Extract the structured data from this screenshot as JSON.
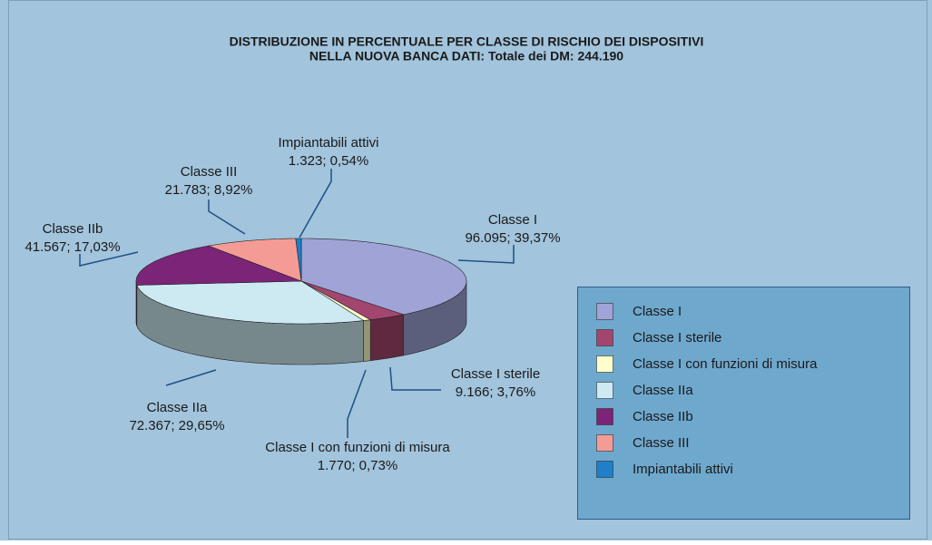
{
  "chart_data": {
    "type": "pie3d",
    "title": [
      "DISTRIBUZIONE IN PERCENTUALE PER CLASSE DI RISCHIO DEI DISPOSITIVI",
      "NELLA NUOVA BANCA DATI: Totale dei DM: 244.190"
    ],
    "categories": [
      "Classe I",
      "Classe I sterile",
      "Classe I con funzioni di misura",
      "Classe IIa",
      "Classe IIb",
      "Classe III",
      "Impiantabili attivi"
    ],
    "values": [
      96095,
      9166,
      1770,
      72367,
      41567,
      21783,
      1323
    ],
    "value_labels": [
      "96.095; 39,37%",
      "9.166; 3,76%",
      "1.770; 0,73%",
      "72.367; 29,65%",
      "41.567; 17,03%",
      "21.783; 8,92%",
      "1.323; 0,54%"
    ],
    "colors": [
      "#9fa3d6",
      "#a3466f",
      "#ffffcc",
      "#cdeaf3",
      "#7b2478",
      "#f59b95",
      "#1f7fc8"
    ],
    "legend": "right"
  }
}
